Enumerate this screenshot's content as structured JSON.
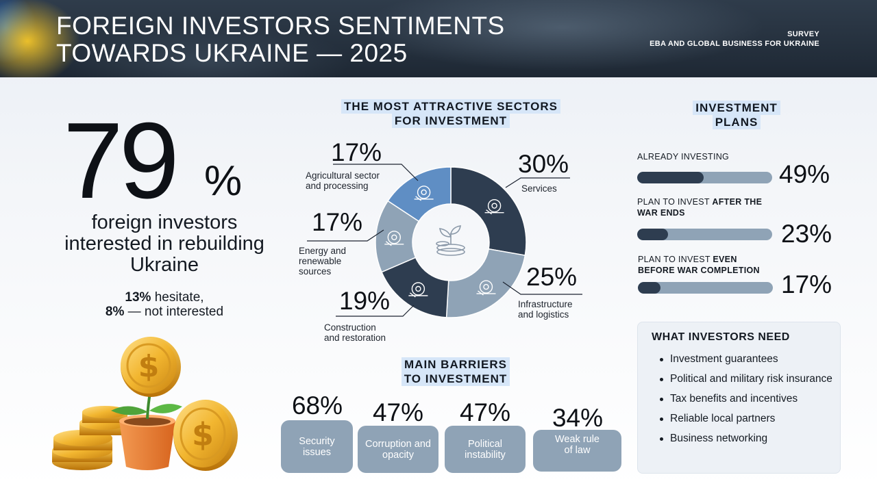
{
  "header": {
    "title_line1": "FOREIGN INVESTORS SENTIMENTS",
    "title_line2": "TOWARDS UKRAINE — 2025",
    "survey_line1": "SURVEY",
    "survey_line2": "EBA AND GLOBAL BUSINESS FOR UKRAINE"
  },
  "headline": {
    "value": "79",
    "unit": "%",
    "text_line1": "foreign investors",
    "text_line2": "interested in rebuilding",
    "text_line3": "Ukraine",
    "hesitate_value": "13%",
    "hesitate_text": " hesitate,",
    "not_interested_value": "8%",
    "not_interested_text": " — not interested"
  },
  "sectors": {
    "heading_line1": "THE MOST ATTRACTIVE SECTORS",
    "heading_line2": "FOR INVESTMENT",
    "items": [
      {
        "name_line1": "Services",
        "name_line2": "",
        "value": 30,
        "label": "30%",
        "color": "#2e3d50",
        "icon": "gears-hand-icon"
      },
      {
        "name_line1": "Infrastructure",
        "name_line2": "and logistics",
        "value": 25,
        "label": "25%",
        "color": "#8fa3b6",
        "icon": "forklift-icon"
      },
      {
        "name_line1": "Construction",
        "name_line2": "and restoration",
        "value": 19,
        "label": "19%",
        "color": "#2e3d50",
        "icon": "crane-building-icon"
      },
      {
        "name_line1": "Energy and",
        "name_line2": "renewable",
        "name_line3": "sources",
        "value": 17,
        "label": "17%",
        "color": "#8fa3b6",
        "icon": "energy-cycle-icon"
      },
      {
        "name_line1": "Agricultural sector",
        "name_line2": "and processing",
        "value": 17,
        "label": "17%",
        "color": "#5f8ec4",
        "icon": "field-sun-icon"
      }
    ],
    "center_icon": "plant-coins-icon"
  },
  "barriers": {
    "heading_line1": "MAIN BARRIERS",
    "heading_line2": "TO INVESTMENT",
    "items": [
      {
        "label": "68%",
        "value": 68,
        "text_line1": "Security",
        "text_line2": "issues"
      },
      {
        "label": "47%",
        "value": 47,
        "text_line1": "Corruption and",
        "text_line2": "opacity"
      },
      {
        "label": "47%",
        "value": 47,
        "text_line1": "Political",
        "text_line2": "instability"
      },
      {
        "label": "34%",
        "value": 34,
        "text_line1": "Weak rule",
        "text_line2": "of law"
      }
    ]
  },
  "plans": {
    "heading_line1": "INVESTMENT",
    "heading_line2": "PLANS",
    "items": [
      {
        "label_a": "ALREADY INVESTING",
        "label_b": "",
        "label_c": "",
        "value": 49,
        "label": "49%"
      },
      {
        "label_a": "PLAN TO INVEST ",
        "label_b": "AFTER THE",
        "label_c": "WAR ENDS",
        "value": 23,
        "label": "23%"
      },
      {
        "label_a": "PLAN TO INVEST ",
        "label_b": "EVEN",
        "label_c": "BEFORE WAR COMPLETION",
        "value": 17,
        "label": "17%"
      }
    ]
  },
  "needs": {
    "title": "WHAT INVESTORS NEED",
    "items": [
      "Investment guarantees",
      "Political and military risk insurance",
      "Tax benefits and incentives",
      "Reliable local partners",
      "Business networking"
    ]
  },
  "illustration": {
    "icon": "coins-plant-pot-icon",
    "coin_symbol": "$"
  },
  "colors": {
    "dark": "#2e3d50",
    "light": "#8fa3b6",
    "accent_blue": "#5f8ec4",
    "highlight": "#d6e6f8",
    "gold": "#f0b83a"
  }
}
